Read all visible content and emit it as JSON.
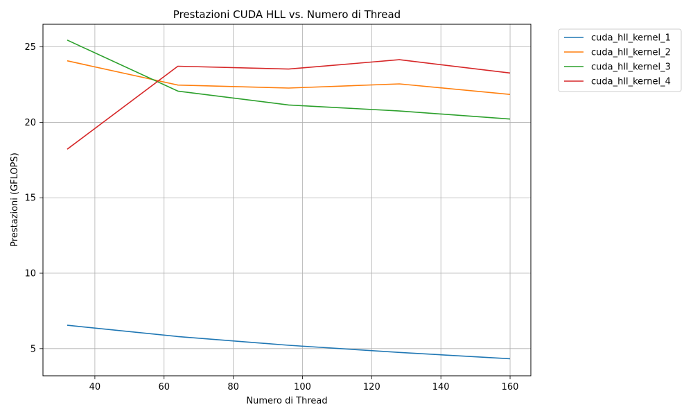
{
  "chart_data": {
    "type": "line",
    "title": "Prestazioni CUDA HLL vs. Numero di Thread",
    "xlabel": "Numero di Thread",
    "ylabel": "Prestazioni (GFLOPS)",
    "xlim": [
      25,
      166
    ],
    "ylim": [
      3.2,
      26.5
    ],
    "x_ticks": [
      40,
      60,
      80,
      100,
      120,
      140,
      160
    ],
    "y_ticks": [
      5,
      10,
      15,
      20,
      25
    ],
    "grid": true,
    "legend_position": "outside-top-right",
    "x": [
      32,
      64,
      96,
      128,
      160
    ],
    "series": [
      {
        "name": "cuda_hll_kernel_1",
        "color": "#1f77b4",
        "values": [
          6.55,
          5.8,
          5.22,
          4.75,
          4.33
        ]
      },
      {
        "name": "cuda_hll_kernel_2",
        "color": "#ff7f0e",
        "values": [
          24.08,
          22.47,
          22.27,
          22.55,
          21.85
        ]
      },
      {
        "name": "cuda_hll_kernel_3",
        "color": "#2ca02c",
        "values": [
          25.45,
          22.07,
          21.15,
          20.75,
          20.22
        ]
      },
      {
        "name": "cuda_hll_kernel_4",
        "color": "#d62728",
        "values": [
          18.22,
          23.72,
          23.53,
          24.15,
          23.27
        ]
      }
    ]
  }
}
